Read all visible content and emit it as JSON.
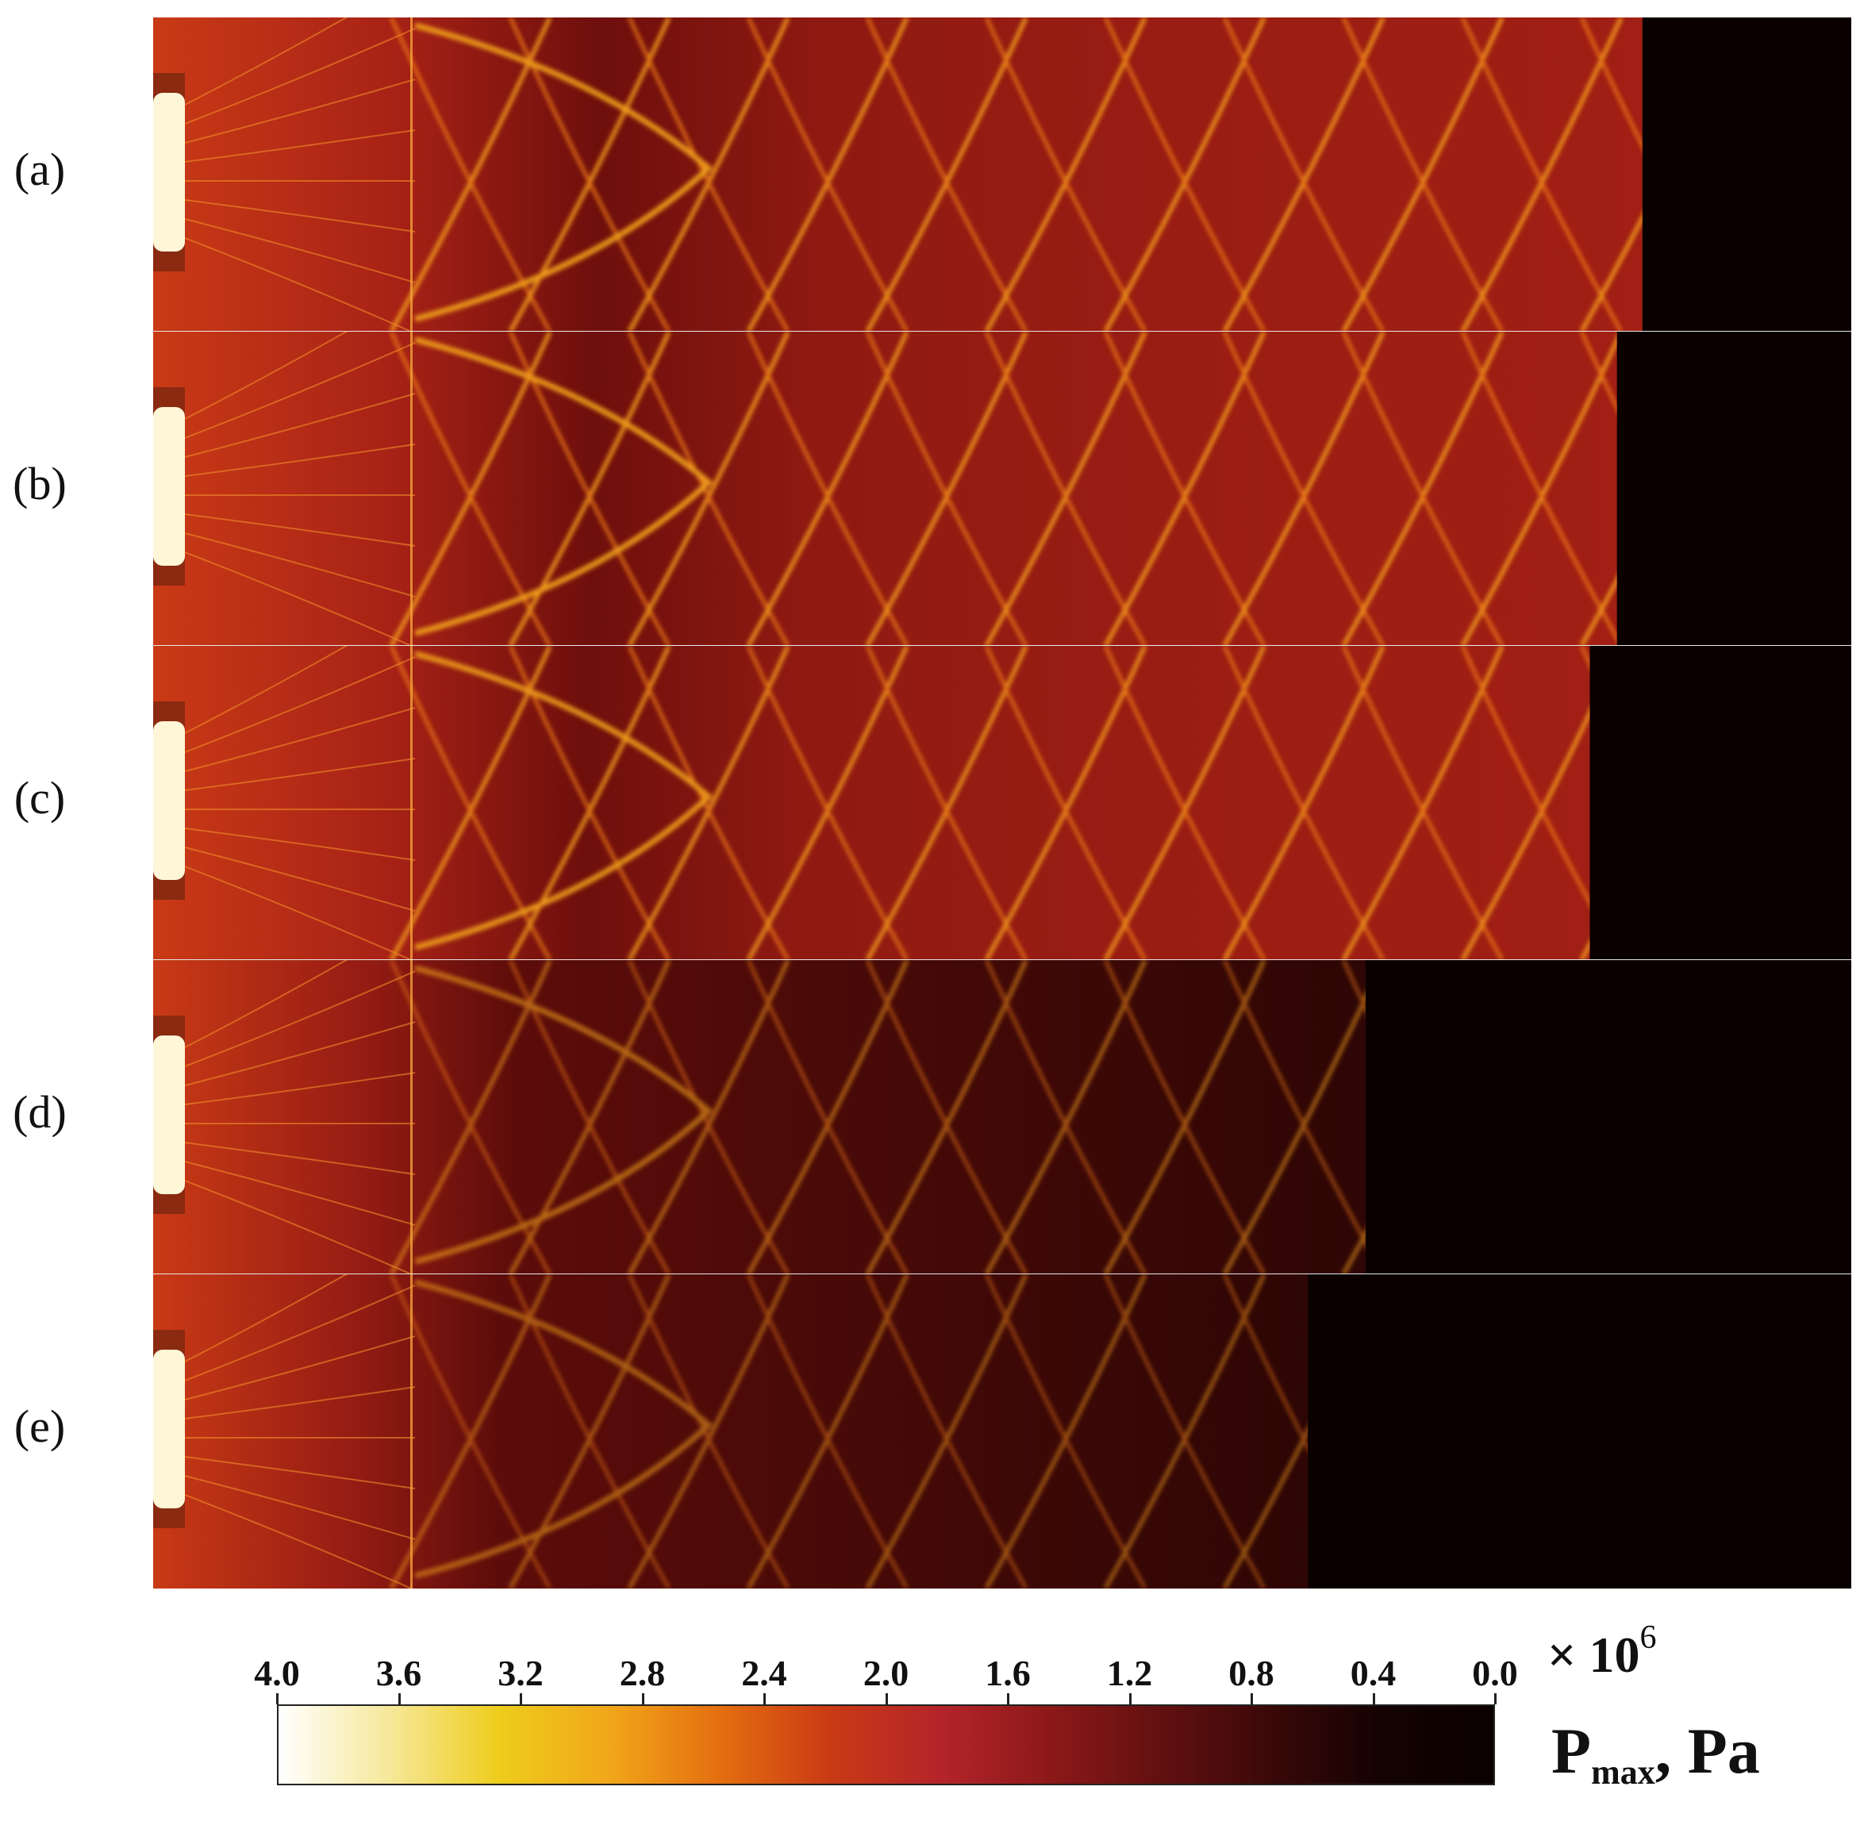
{
  "panels": [
    {
      "label": "(a)",
      "front_fraction": 0.877,
      "intensity": 1.0
    },
    {
      "label": "(b)",
      "front_fraction": 0.862,
      "intensity": 1.0
    },
    {
      "label": "(c)",
      "front_fraction": 0.846,
      "intensity": 0.95
    },
    {
      "label": "(d)",
      "front_fraction": 0.714,
      "intensity": 0.45
    },
    {
      "label": "(e)",
      "front_fraction": 0.68,
      "intensity": 0.35
    }
  ],
  "colorbar": {
    "ticks": [
      "4.0",
      "3.6",
      "3.2",
      "2.8",
      "2.4",
      "2.0",
      "1.6",
      "1.2",
      "0.8",
      "0.4",
      "0.0"
    ],
    "multiplier_prefix": "× 10",
    "multiplier_exponent": "6",
    "quantity": "P",
    "quantity_sub": "max",
    "unit": ", Pa",
    "colors": [
      "#ffffff",
      "#f6e89a",
      "#eecd1c",
      "#f1a61a",
      "#e46e10",
      "#c93a15",
      "#b3242a",
      "#8c1818",
      "#621010",
      "#3a0808",
      "#140202",
      "#0b0000"
    ]
  }
}
